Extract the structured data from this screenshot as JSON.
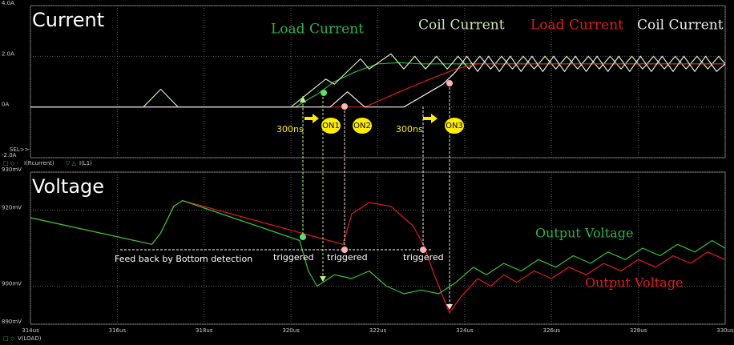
{
  "chart_data": [
    {
      "type": "line",
      "title": "Current",
      "xlim": [
        314,
        330
      ],
      "ylim": [
        -2,
        4
      ],
      "yticks": [
        {
          "value": -2,
          "label": "-2.0A"
        },
        {
          "value": 0,
          "label": "0A"
        },
        {
          "value": 2,
          "label": "2.0A"
        },
        {
          "value": 4,
          "label": "4.0A"
        }
      ],
      "grid": true,
      "legend": [
        "I(Rcurrent)",
        "I(L1)"
      ],
      "annotations": [
        "Load Current",
        "Coil Current",
        "Load Current",
        "Coil Current",
        "300ns",
        "300ns",
        "ON1",
        "ON2",
        "ON3",
        "SEL>>"
      ],
      "series": [
        {
          "color": "#2db24a",
          "x": [
            314,
            320.1,
            320.6,
            321,
            321.5,
            322,
            322.5,
            323,
            330
          ],
          "values": [
            0,
            0,
            0.5,
            1.0,
            1.4,
            1.7,
            1.75,
            1.7,
            1.7
          ]
        },
        {
          "color": "#cfe8b0",
          "x": [
            314,
            316.6,
            317.0,
            317.4,
            320.0,
            320.8,
            321.0,
            321.6,
            321.8,
            322.3,
            322.6,
            322.85,
            323.1,
            323.35,
            323.6,
            323.85,
            324.1,
            324.35,
            324.6,
            324.85,
            325.1,
            325.35,
            325.6,
            325.85,
            326.1,
            326.35,
            326.6,
            326.85,
            327.1,
            327.35,
            327.6,
            327.85,
            328.1,
            328.35,
            328.6,
            328.85,
            329.1,
            329.35,
            329.6,
            329.85,
            330
          ],
          "values": [
            0,
            0,
            0.7,
            0,
            0,
            1.1,
            0.9,
            1.9,
            1.5,
            2.1,
            1.5,
            2.0,
            1.5,
            2.0,
            1.5,
            2.0,
            1.5,
            2.0,
            1.5,
            2.0,
            1.5,
            2.0,
            1.5,
            2.0,
            1.5,
            2.0,
            1.5,
            2.0,
            1.5,
            2.0,
            1.5,
            2.0,
            1.5,
            2.0,
            1.5,
            2.0,
            1.5,
            2.0,
            1.5,
            2.0,
            1.7
          ]
        },
        {
          "color": "#e01b1b",
          "x": [
            314,
            321.7,
            322.5,
            323.2,
            323.8,
            324.3,
            330
          ],
          "values": [
            0,
            0,
            0.6,
            1.1,
            1.5,
            1.7,
            1.7
          ]
        },
        {
          "color": "#f0f0f0",
          "x": [
            314,
            320.9,
            321.3,
            321.7,
            322.6,
            323.5,
            323.8,
            324.05,
            324.3,
            324.55,
            324.8,
            325.05,
            325.3,
            325.55,
            325.8,
            326.05,
            326.3,
            326.55,
            326.8,
            327.05,
            327.3,
            327.55,
            327.8,
            328.05,
            328.3,
            328.55,
            328.8,
            329.05,
            329.3,
            329.55,
            329.8,
            330
          ],
          "values": [
            0,
            0,
            0.6,
            0,
            0,
            0.9,
            1.4,
            2.0,
            1.4,
            2.0,
            1.4,
            2.0,
            1.4,
            2.0,
            1.4,
            2.0,
            1.4,
            2.0,
            1.4,
            2.0,
            1.4,
            2.0,
            1.4,
            2.0,
            1.4,
            2.0,
            1.4,
            2.0,
            1.4,
            2.0,
            1.4,
            1.7
          ]
        }
      ]
    },
    {
      "type": "line",
      "title": "Voltage",
      "xlim": [
        314,
        330
      ],
      "ylim": [
        890,
        930
      ],
      "xticks": [
        {
          "value": 314,
          "label": "314us"
        },
        {
          "value": 316,
          "label": "316us"
        },
        {
          "value": 318,
          "label": "318us"
        },
        {
          "value": 320,
          "label": "320us"
        },
        {
          "value": 322,
          "label": "322us"
        },
        {
          "value": 324,
          "label": "324us"
        },
        {
          "value": 326,
          "label": "326us"
        },
        {
          "value": 328,
          "label": "328us"
        },
        {
          "value": 330,
          "label": "330us"
        }
      ],
      "yticks": [
        {
          "value": 890,
          "label": "890mV"
        },
        {
          "value": 900,
          "label": "900mV"
        },
        {
          "value": 920,
          "label": "920mV"
        },
        {
          "value": 930,
          "label": "930mV"
        }
      ],
      "grid": true,
      "legend": [
        "V(LOAD)"
      ],
      "annotations": [
        "Output Voltage",
        "Output Voltage",
        "Feed back by Bottom detection",
        "triggered",
        "triggered",
        "triggered"
      ],
      "series": [
        {
          "color": "#e01b1b",
          "x": [
            314,
            316.8,
            317.0,
            317.3,
            317.5,
            321.2,
            321.4,
            321.8,
            322.3,
            322.8,
            323.05,
            323.3,
            323.65,
            323.9,
            324.3,
            324.6,
            324.9,
            325.2,
            325.6,
            326.0,
            326.4,
            326.8,
            327.2,
            327.6,
            328.0,
            328.4,
            328.8,
            329.2,
            329.6,
            330
          ],
          "values": [
            918,
            911,
            914,
            921,
            922.5,
            911,
            919,
            922,
            921,
            916,
            911,
            903,
            893,
            897,
            902,
            900,
            903,
            901,
            904,
            902,
            905,
            903,
            906,
            904,
            907,
            905,
            908,
            906,
            909,
            907
          ]
        },
        {
          "color": "#35c23a",
          "x": [
            314,
            316.8,
            317.0,
            317.3,
            317.5,
            320.2,
            320.4,
            320.6,
            321.0,
            321.4,
            321.8,
            322.2,
            322.6,
            323.0,
            323.4,
            323.8,
            324.2,
            324.5,
            324.9,
            325.3,
            325.7,
            326.1,
            326.5,
            326.9,
            327.3,
            327.7,
            328.1,
            328.5,
            328.9,
            329.3,
            329.7,
            330
          ],
          "values": [
            918,
            911,
            914,
            921,
            922.5,
            912,
            904,
            900,
            903,
            902,
            904,
            900,
            898,
            899,
            898,
            901,
            905,
            903,
            906,
            904,
            907,
            905,
            908,
            906,
            909,
            907,
            910,
            908,
            911,
            909,
            912,
            910
          ]
        }
      ]
    }
  ]
}
